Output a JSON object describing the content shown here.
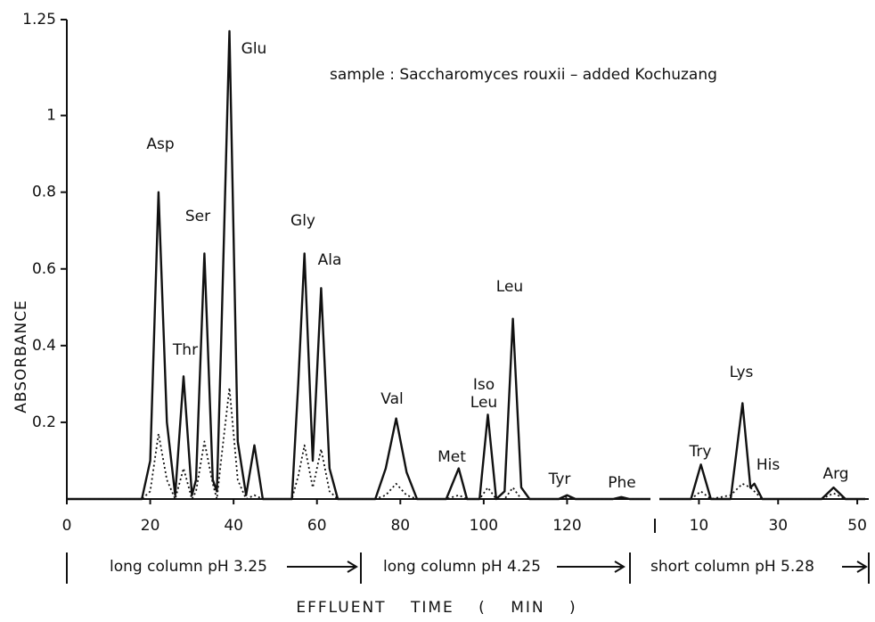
{
  "chart_data": [
    {
      "type": "line",
      "annotation": "sample : Saccharomyces rouxii – added Kochuzang",
      "ylabel": "ABSORBANCE",
      "xlabel": "EFFLUENT TIME ( MIN )",
      "xlim": [
        0,
        140
      ],
      "xticks": [
        0,
        20,
        40,
        60,
        80,
        100,
        120
      ],
      "ylim": [
        0,
        1.25
      ],
      "yticks": [
        0.2,
        0.4,
        0.6,
        0.8,
        1.0,
        1.25
      ],
      "x": [
        0,
        18,
        20,
        22,
        24,
        26,
        28,
        30,
        31,
        33,
        35,
        36,
        37,
        39,
        41,
        43,
        45,
        47,
        54,
        55.5,
        57,
        59,
        61,
        63,
        65,
        74,
        76.5,
        79,
        81.5,
        84,
        91,
        94,
        96,
        99,
        101,
        103,
        105,
        107,
        109,
        111,
        118,
        120,
        122,
        131,
        133,
        135,
        140
      ],
      "series": [
        {
          "color": "#111",
          "line_style": "solid",
          "values": [
            0,
            0,
            0.1,
            0.8,
            0.2,
            0.01,
            0.32,
            0.01,
            0.05,
            0.64,
            0.05,
            0.02,
            0.4,
            1.22,
            0.15,
            0.01,
            0.14,
            0,
            0,
            0.3,
            0.64,
            0.1,
            0.55,
            0.08,
            0,
            0,
            0.08,
            0.21,
            0.07,
            0,
            0,
            0.08,
            0,
            0,
            0.22,
            0,
            0.02,
            0.47,
            0.03,
            0,
            0,
            0.01,
            0,
            0,
            0.005,
            0,
            0
          ]
        },
        {
          "color": "#111",
          "line_style": "dotted",
          "values": [
            0,
            0,
            0.02,
            0.17,
            0.05,
            0,
            0.08,
            0,
            0.02,
            0.15,
            0.04,
            0,
            0.1,
            0.29,
            0.05,
            0,
            0.01,
            0,
            0,
            0.06,
            0.14,
            0.03,
            0.13,
            0.02,
            0,
            0,
            0.01,
            0.04,
            0.01,
            0,
            0,
            0.01,
            0,
            0,
            0.03,
            0,
            0,
            0.03,
            0,
            0,
            0,
            0.005,
            0,
            0,
            0,
            0,
            0
          ]
        }
      ],
      "peak_labels": [
        "Asp",
        "Thr",
        "Ser",
        "Glu",
        "Gly",
        "Ala",
        "Val",
        "Met",
        "Iso",
        "Leu",
        "Leu",
        "Tyr",
        "Phe"
      ],
      "segments": [
        "long column pH 3.25",
        "long column pH 4.25"
      ]
    },
    {
      "type": "line",
      "xlim": [
        0,
        52
      ],
      "xticks": [
        10,
        30,
        50
      ],
      "ylim": [
        0,
        1.25
      ],
      "x": [
        0,
        8,
        10.5,
        13,
        18,
        21,
        23,
        24,
        26,
        41,
        44,
        47,
        52
      ],
      "series": [
        {
          "color": "#111",
          "line_style": "solid",
          "values": [
            0,
            0,
            0.09,
            0,
            0,
            0.25,
            0.03,
            0.04,
            0,
            0,
            0.03,
            0,
            0
          ]
        },
        {
          "color": "#111",
          "line_style": "dotted",
          "values": [
            0,
            0,
            0.02,
            0,
            0.01,
            0.04,
            0.03,
            0.02,
            0,
            0,
            0.015,
            0,
            0
          ]
        }
      ],
      "peak_labels": [
        "Try",
        "Lys",
        "His",
        "Arg"
      ],
      "segments": [
        "short column pH 5.28"
      ]
    }
  ]
}
